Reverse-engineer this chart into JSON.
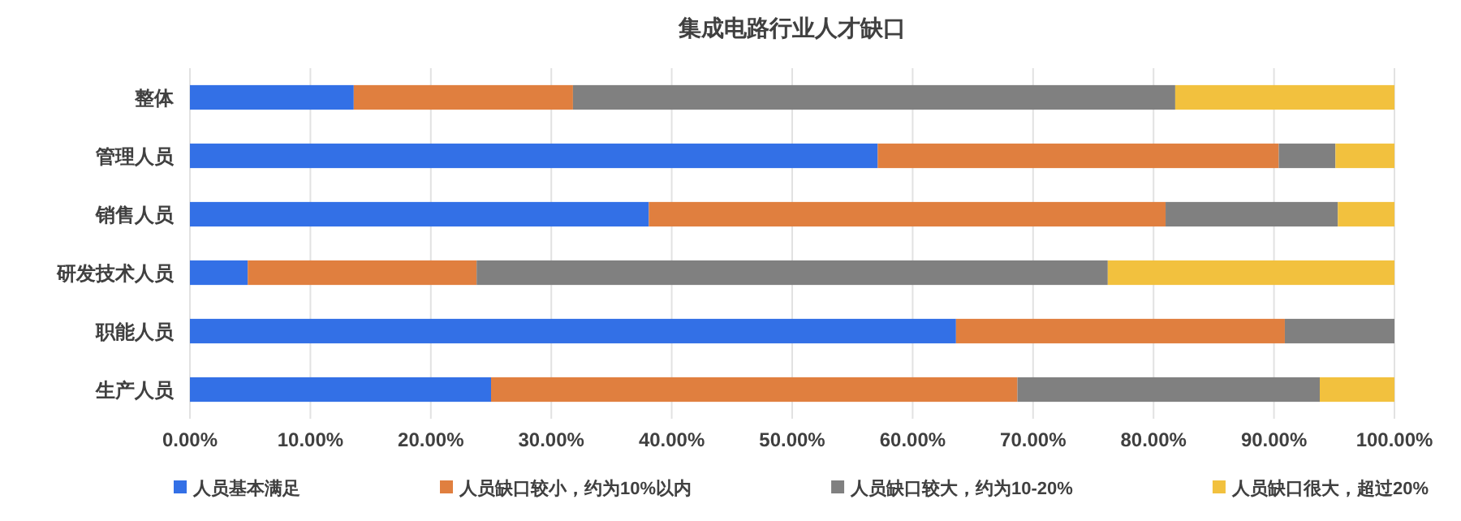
{
  "chart_data": {
    "type": "bar",
    "orientation": "horizontal",
    "stacked": true,
    "title": "集成电路行业人才缺口",
    "categories": [
      "整体",
      "管理人员",
      "销售人员",
      "研发技术人员",
      "职能人员",
      "生产人员"
    ],
    "series": [
      {
        "name": "人员基本满足",
        "color": "#3370e6",
        "values": [
          13.6,
          57.1,
          38.1,
          4.8,
          63.6,
          25.0
        ]
      },
      {
        "name": "人员缺口较小，约为10%以内",
        "color": "#e07f3f",
        "values": [
          18.2,
          33.3,
          42.9,
          19.0,
          27.3,
          43.7
        ]
      },
      {
        "name": "人员缺口较大，约为10-20%",
        "color": "#808080",
        "values": [
          50.0,
          4.7,
          14.3,
          52.4,
          9.1,
          25.1
        ]
      },
      {
        "name": "人员缺口很大，超过20%",
        "color": "#f2c13e",
        "values": [
          18.2,
          4.9,
          4.7,
          23.8,
          0,
          6.2
        ]
      }
    ],
    "xlim": [
      0,
      100
    ],
    "xticks": [
      {
        "value": 0,
        "label": "0.00%"
      },
      {
        "value": 10,
        "label": "10.00%"
      },
      {
        "value": 20,
        "label": "20.00%"
      },
      {
        "value": 30,
        "label": "30.00%"
      },
      {
        "value": 40,
        "label": "40.00%"
      },
      {
        "value": 50,
        "label": "50.00%"
      },
      {
        "value": 60,
        "label": "60.00%"
      },
      {
        "value": 70,
        "label": "70.00%"
      },
      {
        "value": 80,
        "label": "80.00%"
      },
      {
        "value": 90,
        "label": "90.00%"
      },
      {
        "value": 100,
        "label": "100.00%"
      }
    ],
    "grid": "x",
    "legend": "bottom"
  }
}
